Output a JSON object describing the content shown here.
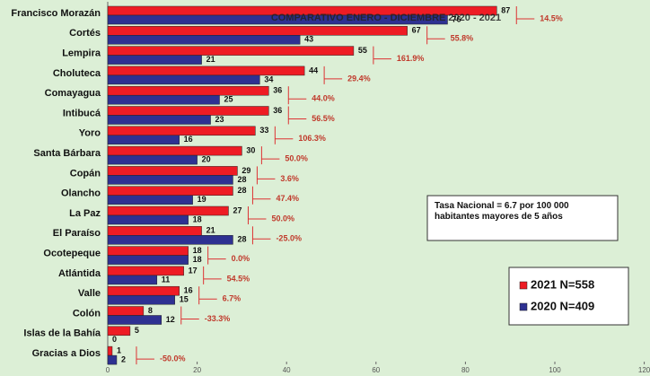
{
  "chart_data": {
    "type": "bar",
    "orientation": "horizontal",
    "title": "COMPARATIVO ENERO - DICIEMBRE 2020 - 2021",
    "categories": [
      "Francisco Morazán",
      "Cortés",
      "Lempira",
      "Choluteca",
      "Comayagua",
      "Intibucá",
      "Yoro",
      "Santa Bárbara",
      "Copán",
      "Olancho",
      "La Paz",
      "El Paraíso",
      "Ocotepeque",
      "Atlántida",
      "Valle",
      "Colón",
      "Islas de la Bahía",
      "Gracias a Dios"
    ],
    "series": [
      {
        "name": "2021 N=558",
        "color": "#ee1c24",
        "values": [
          87,
          67,
          55,
          44,
          36,
          36,
          33,
          30,
          29,
          28,
          27,
          21,
          18,
          17,
          16,
          8,
          5,
          1
        ]
      },
      {
        "name": "2020 N=409",
        "color": "#2e3192",
        "values": [
          76,
          43,
          21,
          34,
          25,
          23,
          16,
          20,
          28,
          19,
          18,
          28,
          18,
          11,
          15,
          12,
          0,
          2
        ]
      }
    ],
    "changes": [
      "14.5%",
      "55.8%",
      "161.9%",
      "29.4%",
      "44.0%",
      "56.5%",
      "106.3%",
      "50.0%",
      "3.6%",
      "47.4%",
      "50.0%",
      "-25.0%",
      "0.0%",
      "54.5%",
      "6.7%",
      "-33.3%",
      null,
      "-50.0%"
    ],
    "note": "Tasa Nacional = 6.7 por 100 000 habitantes mayores de 5 años",
    "xlim": [
      0,
      120
    ],
    "xticks": [
      0,
      20,
      40,
      60,
      80,
      100,
      120
    ],
    "legend": "lower right"
  }
}
